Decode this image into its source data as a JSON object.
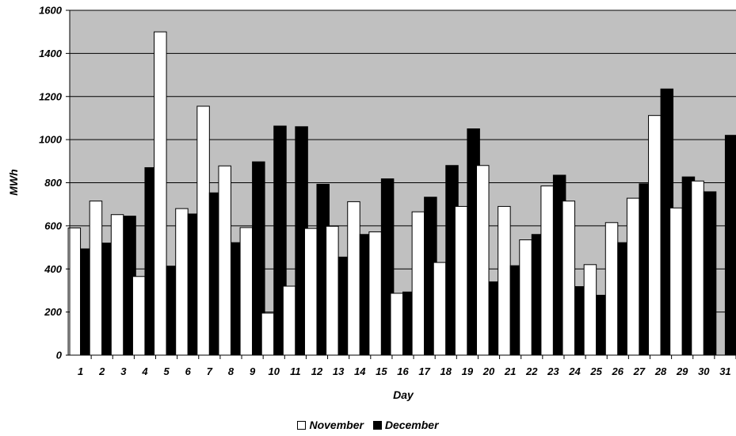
{
  "chart_data": {
    "type": "bar",
    "xlabel": "Day",
    "ylabel": "MWh",
    "ylim": [
      0,
      1600
    ],
    "yticks": [
      0,
      200,
      400,
      600,
      800,
      1000,
      1200,
      1400,
      1600
    ],
    "grid": true,
    "legend_position": "bottom",
    "categories": [
      "1",
      "2",
      "3",
      "4",
      "5",
      "6",
      "7",
      "8",
      "9",
      "10",
      "11",
      "12",
      "13",
      "14",
      "15",
      "16",
      "17",
      "18",
      "19",
      "20",
      "21",
      "22",
      "23",
      "24",
      "25",
      "26",
      "27",
      "28",
      "29",
      "30",
      "31"
    ],
    "series": [
      {
        "name": "November",
        "color": "#ffffff",
        "values": [
          590,
          715,
          652,
          365,
          1500,
          680,
          1155,
          878,
          592,
          195,
          320,
          588,
          598,
          712,
          572,
          287,
          665,
          430,
          690,
          880,
          690,
          535,
          785,
          715,
          420,
          615,
          728,
          1112,
          683,
          808,
          null
        ]
      },
      {
        "name": "December",
        "color": "#000000",
        "values": [
          493,
          520,
          645,
          870,
          413,
          655,
          753,
          522,
          897,
          1063,
          1060,
          793,
          455,
          560,
          818,
          293,
          733,
          880,
          1050,
          340,
          415,
          560,
          835,
          318,
          278,
          522,
          795,
          1235,
          827,
          758,
          1020
        ]
      }
    ]
  },
  "colors": {
    "plot_background": "#c0c0c0",
    "gridline": "#000000"
  }
}
